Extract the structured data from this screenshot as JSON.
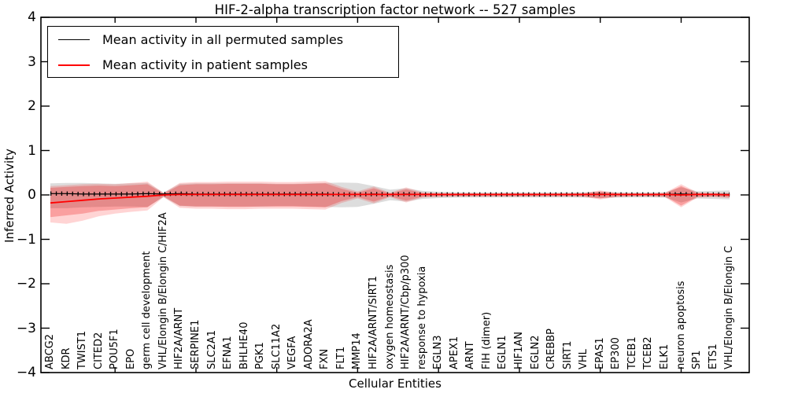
{
  "title": "HIF-2-alpha transcription factor network -- 527 samples",
  "legend": {
    "items": [
      {
        "label": "Mean activity in all permuted samples",
        "color": "#000000"
      },
      {
        "label": "Mean activity in patient samples",
        "color": "#ff0000"
      }
    ]
  },
  "colors": {
    "permuted_line": "#000000",
    "patient_line": "#ff0000",
    "permuted_band": "rgba(130,130,130,0.27)",
    "patient_band_outer": "rgba(255,0,0,0.17)",
    "patient_band_inner": "rgba(235,10,10,0.26)",
    "axis": "#000000"
  },
  "chart_data": {
    "type": "line",
    "title": "HIF-2-alpha transcription factor network -- 527 samples",
    "xlabel": "Cellular Entities",
    "ylabel": "Inferred Activity",
    "ylim": [
      -4,
      4
    ],
    "yticks": [
      "4",
      "3",
      "2",
      "1",
      "0",
      "−1",
      "−2",
      "−3",
      "−4"
    ],
    "ytick_values": [
      4,
      3,
      2,
      1,
      0,
      -1,
      -2,
      -3,
      -4
    ],
    "grid": false,
    "legend_position": "upper left",
    "samples_count": 527,
    "categories": [
      "ABCG2",
      "KDR",
      "TWIST1",
      "CITED2",
      "POU5F1",
      "EPO",
      "germ cell development",
      "VHL/Elongin B/Elongin C/HIF2A",
      "HIF2A/ARNT",
      "SERPINE1",
      "SLC2A1",
      "EFNA1",
      "BHLHE40",
      "PGK1",
      "SLC11A2",
      "VEGFA",
      "ADORA2A",
      "FXN",
      "FLT1",
      "MMP14",
      "HIF2A/ARNT/SIRT1",
      "oxygen homeostasis",
      "HIF2A/ARNT/Cbp/p300",
      "response to hypoxia",
      "EGLN3",
      "APEX1",
      "ARNT",
      "FIH (dimer)",
      "EGLN1",
      "HIF1AN",
      "EGLN2",
      "CREBBP",
      "SIRT1",
      "VHL",
      "EPAS1",
      "EP300",
      "TCEB1",
      "TCEB2",
      "ELK1",
      "neuron apoptosis",
      "SP1",
      "ETS1",
      "VHL/Elongin B/Elongin C"
    ],
    "series": [
      {
        "name": "Mean activity in all permuted samples",
        "color": "#000000",
        "values": [
          0.03,
          0.03,
          0.02,
          0.02,
          0.02,
          0.02,
          0.03,
          0.02,
          0.03,
          0.02,
          0.02,
          0.02,
          0.02,
          0.02,
          0.02,
          0.02,
          0.02,
          0.02,
          0.01,
          0.01,
          0.02,
          0.01,
          0.02,
          0.01,
          0.01,
          0.01,
          0.01,
          0.01,
          0.01,
          0.01,
          0.01,
          0.01,
          0.01,
          0.01,
          0.02,
          0.01,
          0.01,
          0.01,
          0.01,
          0.02,
          0.01,
          0.01,
          0.01
        ]
      },
      {
        "name": "Mean activity in patient samples",
        "color": "#ff0000",
        "values": [
          -0.18,
          -0.15,
          -0.12,
          -0.09,
          -0.07,
          -0.05,
          -0.03,
          0.0,
          0.01,
          0.01,
          0.01,
          0.01,
          0.01,
          0.01,
          0.01,
          0.01,
          0.01,
          0.01,
          0.01,
          0.01,
          0.01,
          0.01,
          0.01,
          0.01,
          0.01,
          0.01,
          0.01,
          0.01,
          0.01,
          0.01,
          0.01,
          0.01,
          0.01,
          0.01,
          0.01,
          0.01,
          0.01,
          0.01,
          0.01,
          0.0,
          0.01,
          0.01,
          0.0
        ]
      }
    ],
    "bands": [
      {
        "name": "permuted-samples-range",
        "color_key": "permuted_band",
        "hi": [
          0.26,
          0.27,
          0.27,
          0.26,
          0.25,
          0.26,
          0.27,
          0.05,
          0.25,
          0.26,
          0.26,
          0.26,
          0.26,
          0.26,
          0.25,
          0.25,
          0.26,
          0.27,
          0.28,
          0.27,
          0.2,
          0.12,
          0.15,
          0.09,
          0.07,
          0.06,
          0.055,
          0.055,
          0.055,
          0.055,
          0.055,
          0.055,
          0.055,
          0.06,
          0.07,
          0.06,
          0.055,
          0.055,
          0.06,
          0.17,
          0.08,
          0.09,
          0.1
        ],
        "lo": [
          -0.3,
          -0.3,
          -0.28,
          -0.27,
          -0.26,
          -0.26,
          -0.27,
          -0.05,
          -0.25,
          -0.26,
          -0.26,
          -0.26,
          -0.26,
          -0.26,
          -0.25,
          -0.25,
          -0.26,
          -0.27,
          -0.28,
          -0.27,
          -0.2,
          -0.12,
          -0.15,
          -0.09,
          -0.07,
          -0.06,
          -0.055,
          -0.055,
          -0.055,
          -0.055,
          -0.055,
          -0.055,
          -0.055,
          -0.06,
          -0.07,
          -0.06,
          -0.055,
          -0.055,
          -0.06,
          -0.17,
          -0.08,
          -0.09,
          -0.1
        ]
      },
      {
        "name": "patient-samples-range-outer",
        "color_key": "patient_band_outer",
        "hi": [
          0.2,
          0.22,
          0.24,
          0.25,
          0.24,
          0.27,
          0.3,
          0.05,
          0.27,
          0.29,
          0.29,
          0.3,
          0.3,
          0.3,
          0.29,
          0.29,
          0.3,
          0.31,
          0.18,
          0.08,
          0.19,
          0.05,
          0.17,
          0.06,
          0.045,
          0.04,
          0.04,
          0.04,
          0.04,
          0.04,
          0.04,
          0.04,
          0.04,
          0.045,
          0.1,
          0.05,
          0.04,
          0.04,
          0.05,
          0.24,
          0.06,
          0.05,
          0.05
        ],
        "lo": [
          -0.62,
          -0.65,
          -0.58,
          -0.48,
          -0.42,
          -0.38,
          -0.35,
          -0.05,
          -0.29,
          -0.31,
          -0.31,
          -0.32,
          -0.32,
          -0.31,
          -0.31,
          -0.31,
          -0.32,
          -0.33,
          -0.18,
          -0.08,
          -0.19,
          -0.05,
          -0.17,
          -0.06,
          -0.045,
          -0.04,
          -0.04,
          -0.04,
          -0.04,
          -0.04,
          -0.04,
          -0.04,
          -0.04,
          -0.045,
          -0.1,
          -0.05,
          -0.04,
          -0.04,
          -0.05,
          -0.28,
          -0.06,
          -0.05,
          -0.07
        ]
      },
      {
        "name": "patient-samples-range-inner",
        "color_key": "patient_band_inner",
        "hi": [
          0.16,
          0.18,
          0.2,
          0.21,
          0.2,
          0.22,
          0.24,
          0.03,
          0.22,
          0.24,
          0.24,
          0.25,
          0.25,
          0.25,
          0.24,
          0.24,
          0.25,
          0.26,
          0.14,
          0.05,
          0.15,
          0.03,
          0.13,
          0.04,
          0.03,
          0.025,
          0.025,
          0.025,
          0.025,
          0.025,
          0.025,
          0.025,
          0.025,
          0.03,
          0.08,
          0.03,
          0.025,
          0.025,
          0.03,
          0.2,
          0.04,
          0.03,
          0.03
        ],
        "lo": [
          -0.5,
          -0.46,
          -0.42,
          -0.36,
          -0.33,
          -0.3,
          -0.28,
          -0.03,
          -0.24,
          -0.26,
          -0.26,
          -0.27,
          -0.27,
          -0.26,
          -0.26,
          -0.26,
          -0.27,
          -0.28,
          -0.14,
          -0.05,
          -0.15,
          -0.03,
          -0.13,
          -0.04,
          -0.03,
          -0.025,
          -0.025,
          -0.025,
          -0.025,
          -0.025,
          -0.025,
          -0.025,
          -0.025,
          -0.03,
          -0.08,
          -0.03,
          -0.025,
          -0.025,
          -0.03,
          -0.24,
          -0.04,
          -0.03,
          -0.05
        ]
      }
    ],
    "x_major_tick_indices": [
      4,
      9,
      14,
      19,
      24,
      29,
      34,
      39
    ]
  }
}
